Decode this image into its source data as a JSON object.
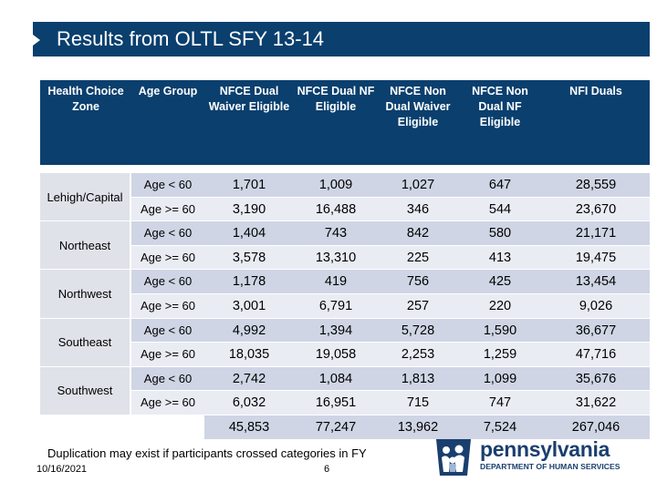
{
  "title": "Results from OLTL SFY 13-14",
  "table": {
    "headers": [
      "Health Choice Zone",
      "Age Group",
      "NFCE Dual Waiver Eligible",
      "NFCE Dual NF Eligible",
      "NFCE Non Dual Waiver Eligible",
      "NFCE Non Dual NF Eligible",
      "NFI Duals"
    ],
    "zones": [
      "Lehigh/Capital",
      "Northeast",
      "Northwest",
      "Southeast",
      "Southwest"
    ],
    "rows": [
      {
        "age": "Age < 60",
        "values": [
          "1,701",
          "1,009",
          "1,027",
          "647",
          "28,559"
        ]
      },
      {
        "age": "Age >= 60",
        "values": [
          "3,190",
          "16,488",
          "346",
          "544",
          "23,670"
        ]
      },
      {
        "age": "Age < 60",
        "values": [
          "1,404",
          "743",
          "842",
          "580",
          "21,171"
        ]
      },
      {
        "age": "Age >= 60",
        "values": [
          "3,578",
          "13,310",
          "225",
          "413",
          "19,475"
        ]
      },
      {
        "age": "Age < 60",
        "values": [
          "1,178",
          "419",
          "756",
          "425",
          "13,454"
        ]
      },
      {
        "age": "Age >= 60",
        "values": [
          "3,001",
          "6,791",
          "257",
          "220",
          "9,026"
        ]
      },
      {
        "age": "Age < 60",
        "values": [
          "4,992",
          "1,394",
          "5,728",
          "1,590",
          "36,677"
        ]
      },
      {
        "age": "Age >= 60",
        "values": [
          "18,035",
          "19,058",
          "2,253",
          "1,259",
          "47,716"
        ]
      },
      {
        "age": "Age < 60",
        "values": [
          "2,742",
          "1,084",
          "1,813",
          "1,099",
          "35,676"
        ]
      },
      {
        "age": "Age >= 60",
        "values": [
          "6,032",
          "16,951",
          "715",
          "747",
          "31,622"
        ]
      }
    ],
    "totals": [
      "45,853",
      "77,247",
      "13,962",
      "7,524",
      "267,046"
    ]
  },
  "footnote": "Duplication may exist if participants crossed categories in FY",
  "date": "10/16/2021",
  "page_number": "6",
  "logo": {
    "name": "pennsylvania",
    "department": "DEPARTMENT OF HUMAN SERVICES"
  },
  "colors": {
    "header_blue": "#0a3f6e",
    "row_dark": "#cfd5e4",
    "row_light": "#e9ecf3",
    "zone_bg": "#dfe2e9"
  }
}
